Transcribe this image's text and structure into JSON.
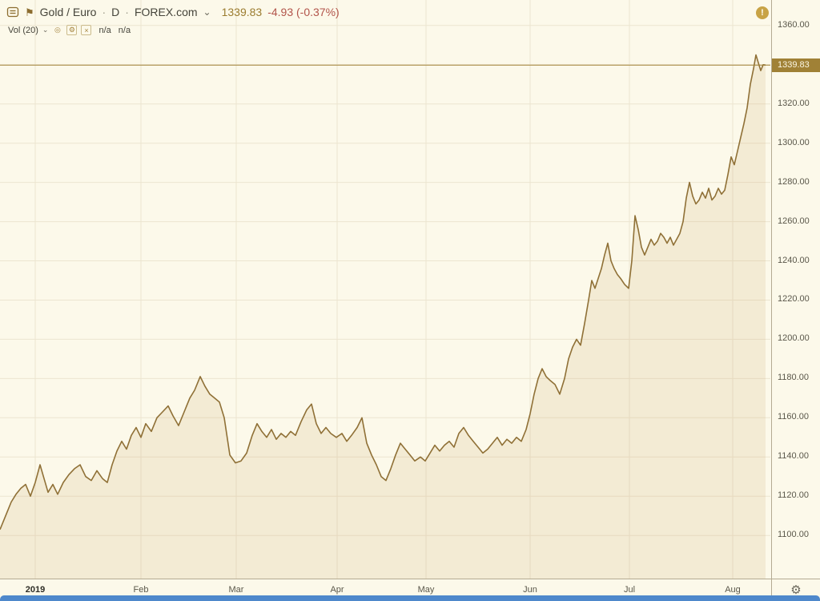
{
  "header": {
    "symbol": "Gold / Euro",
    "sep": "·",
    "interval": "D",
    "exchange": "FOREX.com",
    "price": "1339.83",
    "change": "-4.93 (-0.37%)"
  },
  "indicator": {
    "label": "Vol (20)",
    "value_a": "n/a",
    "value_b": "n/a"
  },
  "icons": {
    "collapse": "⊟",
    "flag": "⚑",
    "chevron_down": "⌄",
    "visibility": "◎",
    "settings": "⚙",
    "close": "×",
    "alert": "!",
    "gear": "⚙"
  },
  "price_scale": {
    "tag": "1339.83"
  },
  "colors": {
    "background": "#fcf9ea",
    "line": "#8f7036",
    "area_fill": "rgba(204,174,118,0.18)",
    "grid": "#ece5d0",
    "accent": "#a08136",
    "axis_text": "#5a574a",
    "change_red": "#b2544a",
    "price_gold": "#9b7c2f",
    "blue_bar": "#4e88cb"
  },
  "chart_data": {
    "type": "line",
    "title": "Gold / Euro",
    "xlabel": "",
    "ylabel": "",
    "grid": true,
    "legend": false,
    "last_price": 1339.83,
    "ylim": [
      1078,
      1373
    ],
    "x_domain": [
      0,
      962
    ],
    "y_ticks": [
      1360,
      1340,
      1320,
      1300,
      1280,
      1260,
      1240,
      1220,
      1200,
      1180,
      1160,
      1140,
      1120,
      1100
    ],
    "x_ticks": [
      {
        "label": "2019",
        "x": 44,
        "bold": true
      },
      {
        "label": "Feb",
        "x": 176,
        "bold": false
      },
      {
        "label": "Mar",
        "x": 295,
        "bold": false
      },
      {
        "label": "Apr",
        "x": 421,
        "bold": false
      },
      {
        "label": "May",
        "x": 532,
        "bold": false
      },
      {
        "label": "Jun",
        "x": 662,
        "bold": false
      },
      {
        "label": "Jul",
        "x": 786,
        "bold": false
      },
      {
        "label": "Aug",
        "x": 915,
        "bold": false
      }
    ],
    "series": [
      {
        "name": "Gold / Euro close",
        "points": [
          [
            0,
            1103
          ],
          [
            7,
            1110
          ],
          [
            14,
            1117
          ],
          [
            20,
            1121
          ],
          [
            26,
            1124
          ],
          [
            32,
            1126
          ],
          [
            38,
            1120
          ],
          [
            44,
            1127
          ],
          [
            50,
            1136
          ],
          [
            55,
            1129
          ],
          [
            60,
            1122
          ],
          [
            66,
            1126
          ],
          [
            72,
            1121
          ],
          [
            79,
            1127
          ],
          [
            86,
            1131
          ],
          [
            93,
            1134
          ],
          [
            100,
            1136
          ],
          [
            107,
            1130
          ],
          [
            114,
            1128
          ],
          [
            121,
            1133
          ],
          [
            128,
            1129
          ],
          [
            134,
            1127
          ],
          [
            140,
            1136
          ],
          [
            146,
            1143
          ],
          [
            152,
            1148
          ],
          [
            158,
            1144
          ],
          [
            164,
            1151
          ],
          [
            170,
            1155
          ],
          [
            176,
            1150
          ],
          [
            182,
            1157
          ],
          [
            189,
            1153
          ],
          [
            196,
            1160
          ],
          [
            203,
            1163
          ],
          [
            210,
            1166
          ],
          [
            216,
            1161
          ],
          [
            223,
            1156
          ],
          [
            230,
            1163
          ],
          [
            237,
            1170
          ],
          [
            243,
            1174
          ],
          [
            250,
            1181
          ],
          [
            256,
            1176
          ],
          [
            262,
            1172
          ],
          [
            268,
            1170
          ],
          [
            274,
            1168
          ],
          [
            280,
            1160
          ],
          [
            287,
            1141
          ],
          [
            294,
            1137
          ],
          [
            301,
            1138
          ],
          [
            308,
            1142
          ],
          [
            315,
            1151
          ],
          [
            321,
            1157
          ],
          [
            327,
            1153
          ],
          [
            333,
            1150
          ],
          [
            339,
            1154
          ],
          [
            345,
            1149
          ],
          [
            351,
            1152
          ],
          [
            357,
            1150
          ],
          [
            363,
            1153
          ],
          [
            369,
            1151
          ],
          [
            376,
            1158
          ],
          [
            383,
            1164
          ],
          [
            389,
            1167
          ],
          [
            395,
            1157
          ],
          [
            401,
            1152
          ],
          [
            407,
            1155
          ],
          [
            413,
            1152
          ],
          [
            420,
            1150
          ],
          [
            427,
            1152
          ],
          [
            433,
            1148
          ],
          [
            439,
            1151
          ],
          [
            446,
            1155
          ],
          [
            452,
            1160
          ],
          [
            458,
            1147
          ],
          [
            464,
            1141
          ],
          [
            470,
            1136
          ],
          [
            476,
            1130
          ],
          [
            482,
            1128
          ],
          [
            488,
            1134
          ],
          [
            494,
            1141
          ],
          [
            500,
            1147
          ],
          [
            506,
            1144
          ],
          [
            512,
            1141
          ],
          [
            518,
            1138
          ],
          [
            525,
            1140
          ],
          [
            531,
            1138
          ],
          [
            537,
            1142
          ],
          [
            543,
            1146
          ],
          [
            549,
            1143
          ],
          [
            555,
            1146
          ],
          [
            561,
            1148
          ],
          [
            567,
            1145
          ],
          [
            573,
            1152
          ],
          [
            579,
            1155
          ],
          [
            585,
            1151
          ],
          [
            591,
            1148
          ],
          [
            597,
            1145
          ],
          [
            603,
            1142
          ],
          [
            609,
            1144
          ],
          [
            615,
            1147
          ],
          [
            621,
            1150
          ],
          [
            627,
            1146
          ],
          [
            633,
            1149
          ],
          [
            639,
            1147
          ],
          [
            645,
            1150
          ],
          [
            651,
            1148
          ],
          [
            657,
            1154
          ],
          [
            662,
            1162
          ],
          [
            667,
            1172
          ],
          [
            672,
            1180
          ],
          [
            677,
            1185
          ],
          [
            682,
            1181
          ],
          [
            687,
            1179
          ],
          [
            693,
            1177
          ],
          [
            699,
            1172
          ],
          [
            705,
            1180
          ],
          [
            710,
            1190
          ],
          [
            715,
            1196
          ],
          [
            720,
            1200
          ],
          [
            725,
            1197
          ],
          [
            730,
            1208
          ],
          [
            735,
            1220
          ],
          [
            739,
            1230
          ],
          [
            743,
            1226
          ],
          [
            747,
            1231
          ],
          [
            751,
            1236
          ],
          [
            755,
            1243
          ],
          [
            759,
            1249
          ],
          [
            763,
            1240
          ],
          [
            767,
            1236
          ],
          [
            771,
            1233
          ],
          [
            775,
            1231
          ],
          [
            780,
            1228
          ],
          [
            785,
            1226
          ],
          [
            789,
            1240
          ],
          [
            793,
            1263
          ],
          [
            797,
            1256
          ],
          [
            801,
            1247
          ],
          [
            805,
            1243
          ],
          [
            809,
            1247
          ],
          [
            813,
            1251
          ],
          [
            817,
            1248
          ],
          [
            821,
            1250
          ],
          [
            825,
            1254
          ],
          [
            829,
            1252
          ],
          [
            833,
            1249
          ],
          [
            837,
            1252
          ],
          [
            841,
            1248
          ],
          [
            845,
            1251
          ],
          [
            849,
            1254
          ],
          [
            853,
            1260
          ],
          [
            857,
            1272
          ],
          [
            861,
            1280
          ],
          [
            865,
            1273
          ],
          [
            869,
            1269
          ],
          [
            873,
            1271
          ],
          [
            877,
            1275
          ],
          [
            881,
            1272
          ],
          [
            885,
            1277
          ],
          [
            889,
            1271
          ],
          [
            893,
            1273
          ],
          [
            897,
            1277
          ],
          [
            901,
            1274
          ],
          [
            905,
            1276
          ],
          [
            909,
            1284
          ],
          [
            913,
            1293
          ],
          [
            917,
            1289
          ],
          [
            921,
            1296
          ],
          [
            925,
            1303
          ],
          [
            929,
            1310
          ],
          [
            933,
            1318
          ],
          [
            937,
            1330
          ],
          [
            941,
            1338
          ],
          [
            944,
            1345
          ],
          [
            947,
            1341
          ],
          [
            950,
            1337
          ],
          [
            953,
            1340
          ],
          [
            956,
            1339.83
          ]
        ]
      }
    ]
  }
}
